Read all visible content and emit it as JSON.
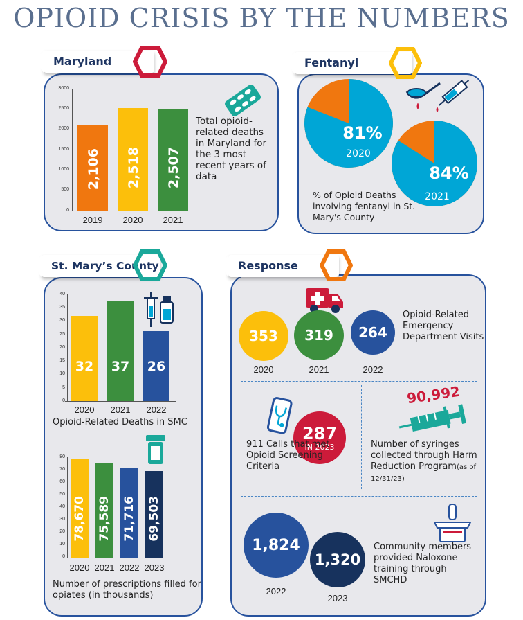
{
  "title": "OPIOID CRISIS BY THE NUMBERS",
  "colors": {
    "navy": "#1d3461",
    "blue": "#27529d",
    "orange": "#f0770f",
    "yellow": "#fcbf0b",
    "green": "#3c8f3e",
    "darkblue": "#17325d",
    "red": "#cc1b3a",
    "teal": "#1aa89a",
    "cyan": "#00a6d6"
  },
  "maryland": {
    "tag": "Maryland",
    "description": "Total opioid-related deaths in Maryland for the 3 most recent years of data",
    "icon": "pill-blister-icon",
    "chart_data": {
      "type": "bar",
      "categories": [
        "2019",
        "2020",
        "2021"
      ],
      "values": [
        2106,
        2518,
        2507
      ],
      "value_labels": [
        "2,106",
        "2,518",
        "2,507"
      ],
      "ylim": [
        0,
        3000
      ],
      "yticks": [
        "3000",
        "2500",
        "2000",
        "1500",
        "1000",
        "500",
        "0"
      ]
    }
  },
  "fentanyl": {
    "tag": "Fentanyl",
    "icon": "spoon-syringe-icon",
    "pies": [
      {
        "year": "2020",
        "value": 81,
        "label": "81%"
      },
      {
        "year": "2021",
        "value": 84,
        "label": "84%"
      }
    ],
    "description": "% of Opioid Deaths involving fentanyl in St. Mary's County"
  },
  "smc": {
    "tag": "St. Mary’s County",
    "deaths": {
      "caption": "Opioid-Related Deaths in SMC",
      "icon": "syringe-vial-icon",
      "chart_data": {
        "type": "bar",
        "categories": [
          "2020",
          "2021",
          "2022"
        ],
        "values": [
          32,
          37,
          26
        ],
        "value_labels": [
          "32",
          "37",
          "26"
        ],
        "ylim": [
          0,
          40
        ],
        "yticks": [
          "40",
          "35",
          "30",
          "25",
          "20",
          "15",
          "10",
          "5",
          "0"
        ]
      }
    },
    "prescriptions": {
      "caption": "Number of prescriptions filled for opiates (in thousands)",
      "icon": "pill-bottle-icon",
      "chart_data": {
        "type": "bar",
        "categories": [
          "2020",
          "2021",
          "2022",
          "2023"
        ],
        "values": [
          78.67,
          75.589,
          71.716,
          69.503
        ],
        "value_labels": [
          "78,670",
          "75,589",
          "71,716",
          "69,503"
        ],
        "ylim": [
          0,
          80
        ],
        "yticks": [
          "80",
          "70",
          "60",
          "50",
          "40",
          "30",
          "20",
          "10",
          "0"
        ]
      }
    }
  },
  "response": {
    "tag": "Response",
    "ed_visits": {
      "icon": "ambulance-icon",
      "label": "Opioid-Related Emergency Department Visits",
      "items": [
        {
          "value": "353",
          "year": "2020"
        },
        {
          "value": "319",
          "year": "2021"
        },
        {
          "value": "264",
          "year": "2022"
        }
      ]
    },
    "calls": {
      "icon": "phone-stethoscope-icon",
      "label": "911 Calls that met Opioid Screening Criteria",
      "value": "287",
      "sub": "IN 2023"
    },
    "syringes": {
      "icon": "syringe-icon",
      "value": "90,992",
      "label_main": "Number of syringes collected through Harm Reduction Program",
      "label_note": "(as of 12/31/23)"
    },
    "naloxone": {
      "icon": "naloxone-spray-icon",
      "label": "Community members provided Naloxone training through SMCHD",
      "items": [
        {
          "value": "1,824",
          "year": "2022"
        },
        {
          "value": "1,320",
          "year": "2023"
        }
      ]
    }
  }
}
